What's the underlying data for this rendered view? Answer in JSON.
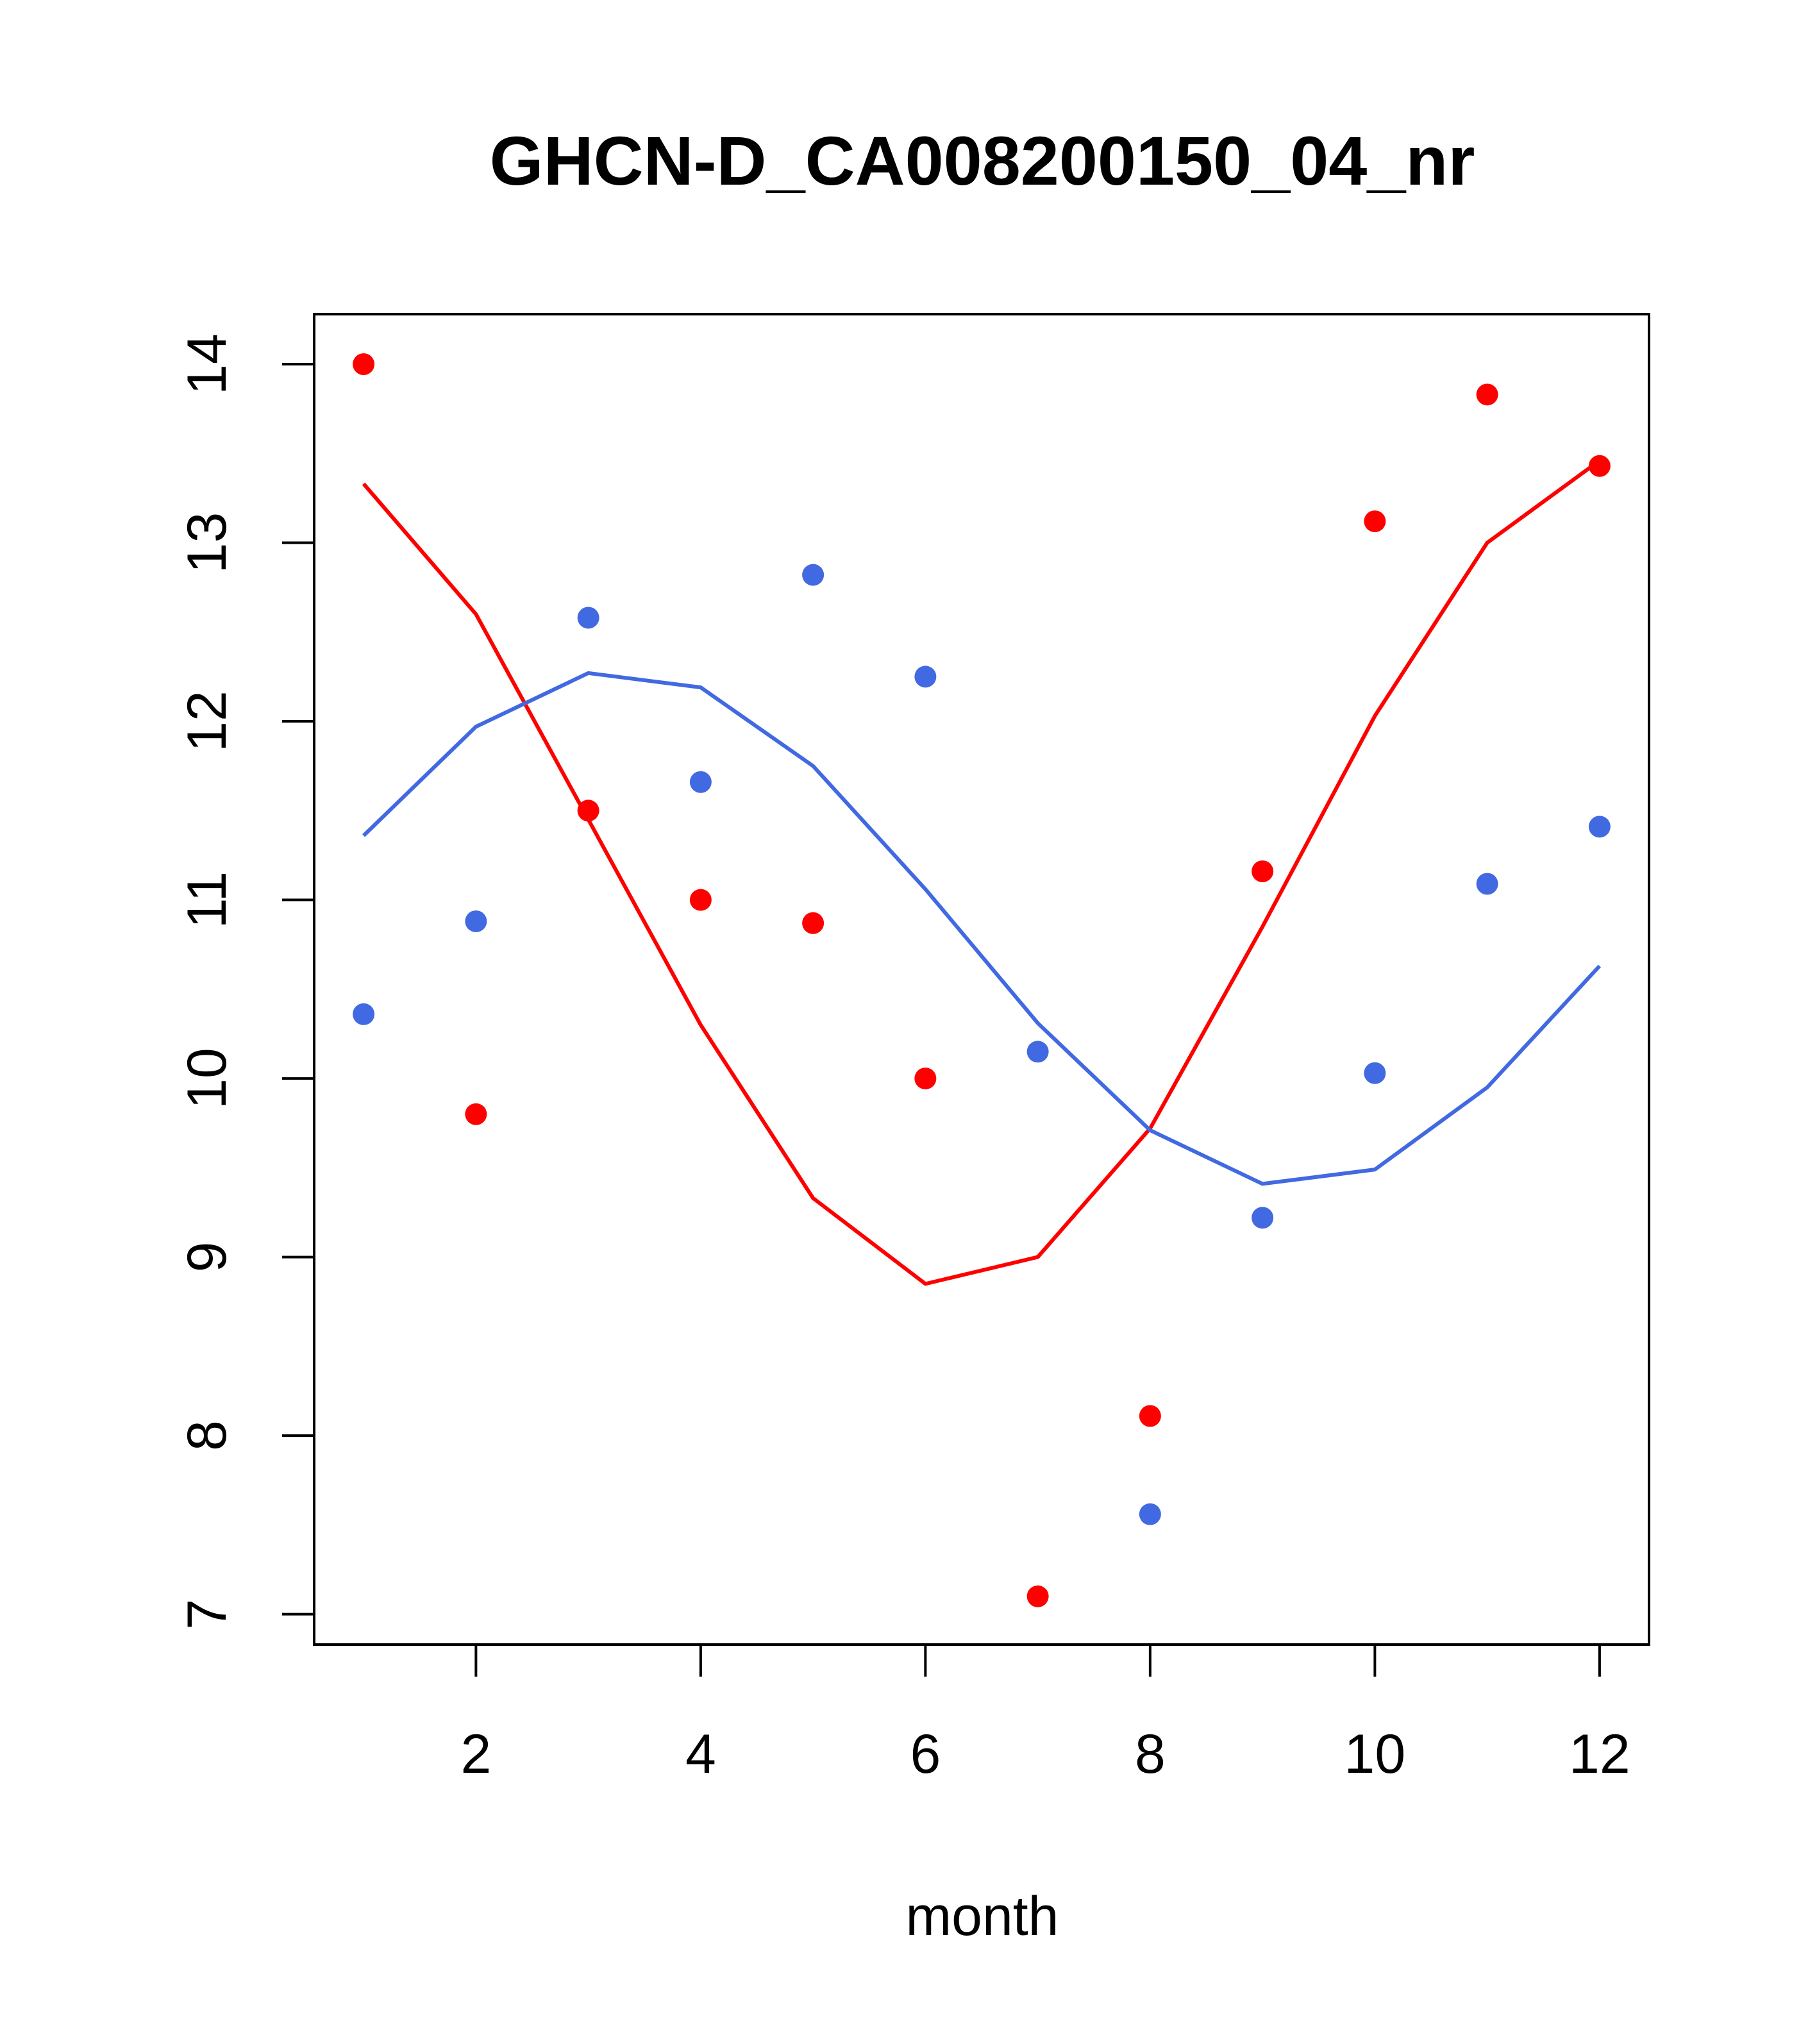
{
  "chart_data": {
    "type": "scatter",
    "title": "GHCN-D_CA008200150_04_nr",
    "xlabel": "month",
    "ylabel": "",
    "xlim": [
      0.56,
      12.44
    ],
    "ylim": [
      6.83,
      14.28
    ],
    "xticks": [
      2,
      4,
      6,
      8,
      10,
      12
    ],
    "yticks": [
      7,
      8,
      9,
      10,
      11,
      12,
      13,
      14
    ],
    "grid": false,
    "legend": "none",
    "x": [
      1,
      2,
      3,
      4,
      5,
      6,
      7,
      8,
      9,
      10,
      11,
      12
    ],
    "series": [
      {
        "color": "#ff0000",
        "points": [
          14.0,
          9.8,
          11.5,
          11.0,
          10.87,
          10.0,
          7.1,
          8.11,
          11.16,
          13.12,
          13.83,
          13.43
        ],
        "line": [
          13.33,
          12.6,
          11.45,
          10.3,
          9.33,
          8.85,
          9.0,
          9.72,
          10.85,
          12.03,
          13.0,
          13.46
        ]
      },
      {
        "color": "#4169e1",
        "points": [
          10.36,
          10.88,
          12.58,
          11.66,
          12.82,
          12.25,
          10.15,
          7.56,
          9.22,
          10.03,
          11.09,
          11.41
        ],
        "line": [
          11.36,
          11.97,
          12.27,
          12.19,
          11.75,
          11.06,
          10.31,
          9.71,
          9.41,
          9.49,
          9.95,
          10.63
        ]
      }
    ]
  }
}
